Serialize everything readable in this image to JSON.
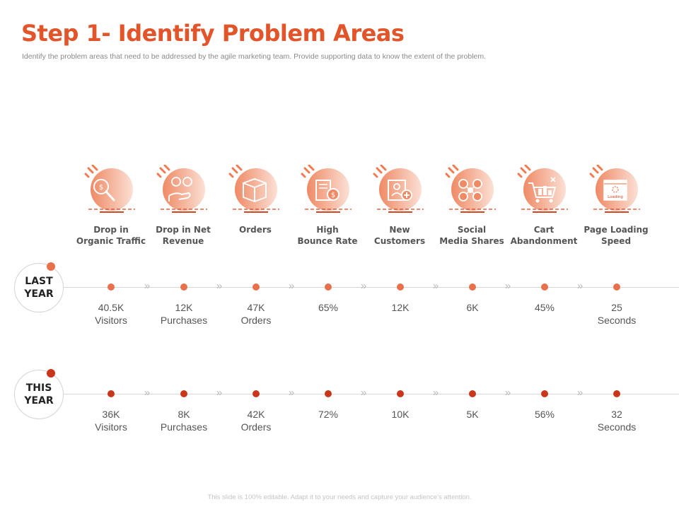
{
  "title": "Step 1- Identify Problem Areas",
  "subtitle": "Identify the problem areas that need to be addressed by the agile marketing team. Provide supporting data to know the extent of the problem.",
  "footer": "This slide is 100% editable. Adapt it to your needs and capture your audience’s attention.",
  "colors": {
    "accent": "#e2552a",
    "last_year_dot": "#e8704a",
    "this_year_dot": "#c9361a",
    "line": "#d8d8d8"
  },
  "categories": [
    {
      "label_line1": "Drop in",
      "label_line2": "Organic Traffic",
      "icon": "magnifier-money-icon"
    },
    {
      "label_line1": "Drop in Net",
      "label_line2": "Revenue",
      "icon": "hand-coins-icon"
    },
    {
      "label_line1": "Orders",
      "label_line2": "",
      "icon": "box-icon"
    },
    {
      "label_line1": "High",
      "label_line2": "Bounce Rate",
      "icon": "report-dollar-icon"
    },
    {
      "label_line1": "New",
      "label_line2": "Customers",
      "icon": "add-user-icon"
    },
    {
      "label_line1": "Social",
      "label_line2": "Media Shares",
      "icon": "social-network-icon"
    },
    {
      "label_line1": "Cart",
      "label_line2": "Abandonment",
      "icon": "cart-icon"
    },
    {
      "label_line1": "Page Loading",
      "label_line2": "Speed",
      "icon": "browser-loading-icon",
      "icon_text": "Loading"
    }
  ],
  "chevron": "»",
  "rows": [
    {
      "label_line1": "LAST",
      "label_line2": "YEAR",
      "values": [
        {
          "line1": "40.5K",
          "line2": "Visitors"
        },
        {
          "line1": "12K",
          "line2": "Purchases"
        },
        {
          "line1": "47K",
          "line2": "Orders"
        },
        {
          "line1": "65%",
          "line2": ""
        },
        {
          "line1": "12K",
          "line2": ""
        },
        {
          "line1": "6K",
          "line2": ""
        },
        {
          "line1": "45%",
          "line2": ""
        },
        {
          "line1": "25",
          "line2": "Seconds"
        }
      ]
    },
    {
      "label_line1": "THIS",
      "label_line2": "YEAR",
      "values": [
        {
          "line1": "36K",
          "line2": "Visitors"
        },
        {
          "line1": "8K",
          "line2": "Purchases"
        },
        {
          "line1": "42K",
          "line2": "Orders"
        },
        {
          "line1": "72%",
          "line2": ""
        },
        {
          "line1": "10K",
          "line2": ""
        },
        {
          "line1": "5K",
          "line2": ""
        },
        {
          "line1": "56%",
          "line2": ""
        },
        {
          "line1": "32",
          "line2": "Seconds"
        }
      ]
    }
  ]
}
